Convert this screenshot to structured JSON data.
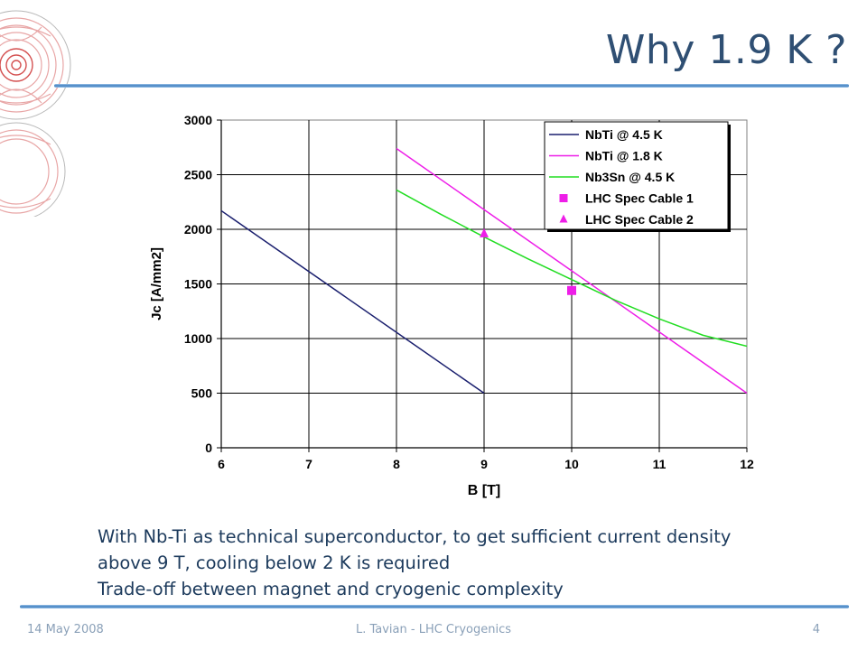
{
  "slide": {
    "title": "Why 1.9 K ?",
    "caption_lines": [
      "With Nb-Ti as technical superconductor, to get sufficient current density",
      "above 9 T, cooling below 2 K is required",
      "Trade-off between magnet and cryogenic complexity"
    ],
    "footer": {
      "date": "14 May 2008",
      "center": "L. Tavian - LHC Cryogenics",
      "page": "4"
    },
    "logo_icon": "lhc-logo-icon",
    "colors": {
      "title": "#2f4f73",
      "caption": "#1c3a5c",
      "footer": "#8aa0b8",
      "rule": "#3f7fc0"
    }
  },
  "chart_data": {
    "type": "line",
    "title": "",
    "xlabel": "B [T]",
    "ylabel": "Jc [A/mm2]",
    "xlim": [
      6,
      12
    ],
    "ylim": [
      0,
      3000
    ],
    "xticks": [
      6,
      7,
      8,
      9,
      10,
      11,
      12
    ],
    "yticks": [
      0,
      500,
      1000,
      1500,
      2000,
      2500,
      3000
    ],
    "grid": true,
    "legend_position": "top-right",
    "series": [
      {
        "name": "NbTi @ 4.5 K",
        "color": "#1a1f6e",
        "marker": "none",
        "x": [
          6,
          9
        ],
        "y": [
          2170,
          500
        ]
      },
      {
        "name": "NbTi @ 1.8 K",
        "color": "#ee1ee8",
        "marker": "none",
        "x": [
          8,
          12
        ],
        "y": [
          2740,
          500
        ]
      },
      {
        "name": "Nb3Sn @ 4.5 K",
        "color": "#22dd22",
        "marker": "none",
        "x": [
          8,
          8.5,
          9,
          9.5,
          10,
          10.5,
          11,
          11.5,
          12
        ],
        "y": [
          2360,
          2140,
          1930,
          1730,
          1540,
          1350,
          1180,
          1030,
          930
        ]
      },
      {
        "name": "LHC Spec Cable 1",
        "color": "#ee1ee8",
        "marker": "square",
        "x": [
          10
        ],
        "y": [
          1440
        ]
      },
      {
        "name": "LHC Spec Cable 2",
        "color": "#ee1ee8",
        "marker": "triangle",
        "x": [
          9
        ],
        "y": [
          1960
        ]
      }
    ]
  }
}
